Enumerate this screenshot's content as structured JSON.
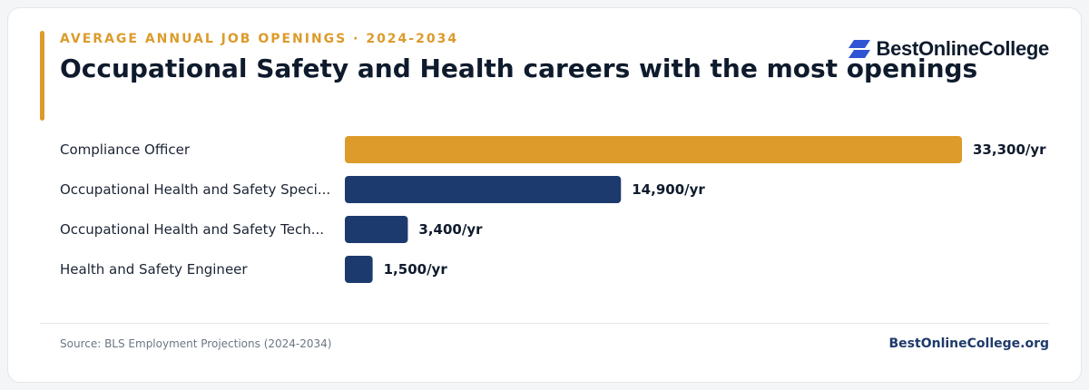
{
  "header": {
    "eyebrow": "AVERAGE ANNUAL JOB OPENINGS · 2024-2034",
    "title": "Occupational Safety and Health careers with the most openings"
  },
  "brand": {
    "logo_text": "BestOnlineCollege",
    "logo_icon": "stacked-parallelogram-icon"
  },
  "colors": {
    "highlight": "#dc9b2a",
    "bar": "#1d3a6e",
    "brand_blue": "#2f55d4"
  },
  "chart_data": {
    "type": "bar",
    "orientation": "horizontal",
    "categories": [
      "Compliance Officer",
      "Occupational Health and Safety Speci...",
      "Occupational Health and Safety Tech...",
      "Health and Safety Engineer"
    ],
    "values": [
      33300,
      14900,
      3400,
      1500
    ],
    "value_labels": [
      "33,300/yr",
      "14,900/yr",
      "3,400/yr",
      "1,500/yr"
    ],
    "highlight_index": 0,
    "xlim": [
      0,
      33300
    ],
    "grid": false
  },
  "footer": {
    "source": "Source: BLS Employment Projections (2024-2034)",
    "site": "BestOnlineCollege.org"
  }
}
